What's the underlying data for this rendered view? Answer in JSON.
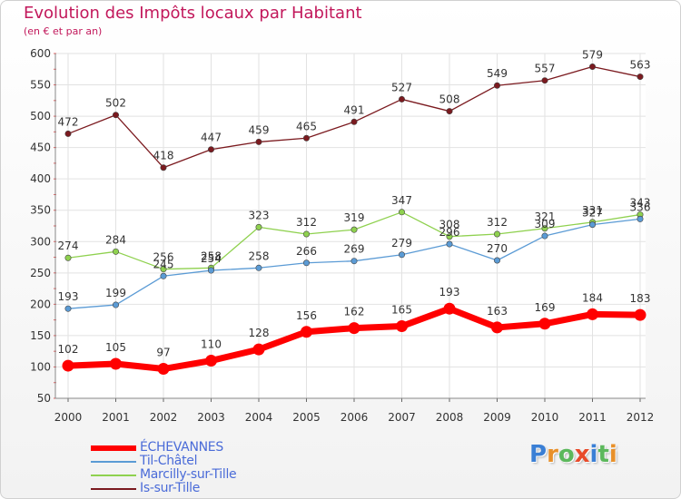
{
  "title": "Evolution des Impôts locaux par Habitant",
  "subtitle": "(en € et par an)",
  "logo": {
    "text": "Proxiti",
    "letter_colors": [
      "#3a7fd5",
      "#e8902a",
      "#5cb85c",
      "#e84a2a",
      "#3a7fd5",
      "#5cb85c",
      "#e8902a"
    ]
  },
  "chart_data": {
    "type": "line",
    "x": [
      "2000",
      "2001",
      "2002",
      "2003",
      "2004",
      "2005",
      "2006",
      "2007",
      "2008",
      "2009",
      "2010",
      "2011",
      "2012"
    ],
    "ylim": [
      50,
      600
    ],
    "yticks": [
      "50",
      "100",
      "150",
      "200",
      "250",
      "300",
      "350",
      "400",
      "450",
      "500",
      "550",
      "600"
    ],
    "ytick_values": [
      50,
      100,
      150,
      200,
      250,
      300,
      350,
      400,
      450,
      500,
      550,
      600
    ],
    "grid": true,
    "legend_position": "bottom-left",
    "series": [
      {
        "name": "Is-sur-Tille",
        "color": "#7b1a1f",
        "values": [
          472,
          502,
          418,
          447,
          459,
          465,
          491,
          527,
          508,
          549,
          557,
          579,
          563
        ],
        "labels": [
          "472",
          "502",
          "418",
          "447",
          "459",
          "465",
          "491",
          "527",
          "508",
          "549",
          "557",
          "579",
          "563"
        ]
      },
      {
        "name": "Marcilly-sur-Tille",
        "color": "#8fd14f",
        "values": [
          274,
          284,
          256,
          258,
          323,
          312,
          319,
          347,
          308,
          312,
          321,
          331,
          343
        ],
        "labels": [
          "274",
          "284",
          "256",
          "258",
          "323",
          "312",
          "319",
          "347",
          "308",
          "312",
          "321",
          "331",
          "343"
        ]
      },
      {
        "name": "Til-Châtel",
        "color": "#5b9bd5",
        "values": [
          193,
          199,
          245,
          254,
          258,
          266,
          269,
          279,
          296,
          270,
          309,
          327,
          336
        ],
        "labels": [
          "193",
          "199",
          "245",
          "254",
          "258",
          "266",
          "269",
          "279",
          "296",
          "270",
          "309",
          "327",
          "336"
        ]
      },
      {
        "name": "ÉCHEVANNES",
        "color": "#ff0000",
        "values": [
          102,
          105,
          97,
          110,
          128,
          156,
          162,
          165,
          193,
          163,
          169,
          184,
          183
        ],
        "labels": [
          "102",
          "105",
          "97",
          "110",
          "128",
          "156",
          "162",
          "165",
          "193",
          "163",
          "169",
          "184",
          "183"
        ]
      }
    ],
    "legend_order": [
      "ÉCHEVANNES",
      "Til-Châtel",
      "Marcilly-sur-Tille",
      "Is-sur-Tille"
    ]
  }
}
